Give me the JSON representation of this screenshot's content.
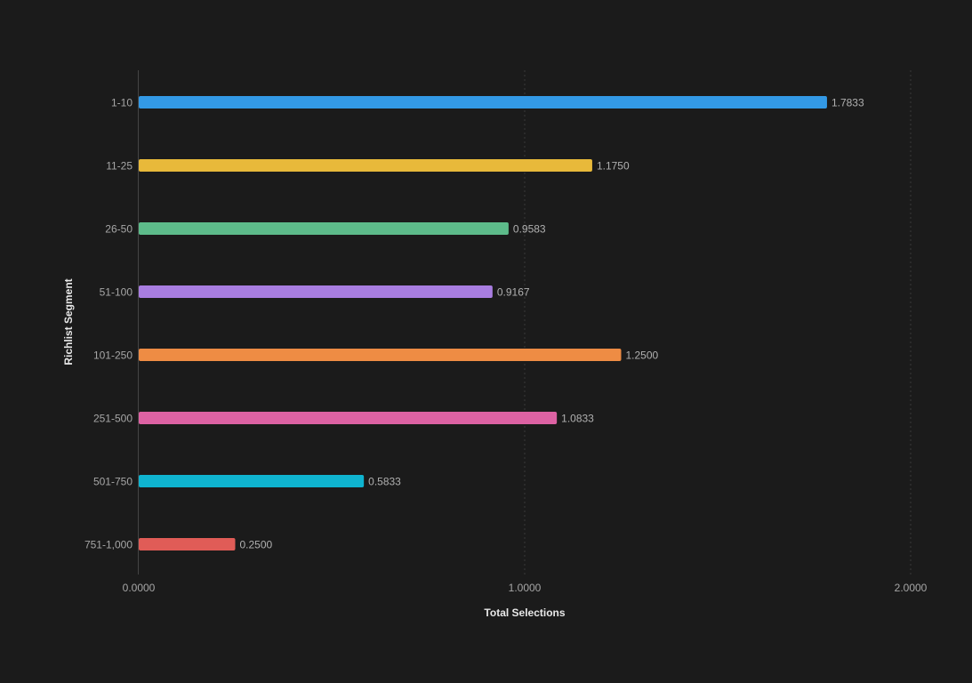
{
  "chart_data": {
    "type": "bar",
    "orientation": "horizontal",
    "title": "",
    "xlabel": "Total Selections",
    "ylabel": "Richlist Segment",
    "xlim": [
      0,
      2
    ],
    "x_ticks": [
      {
        "value": 0,
        "label": "0.0000"
      },
      {
        "value": 1,
        "label": "1.0000"
      },
      {
        "value": 2,
        "label": "2.0000"
      }
    ],
    "grid": "vertical-dotted",
    "categories": [
      "1-10",
      "11-25",
      "26-50",
      "51-100",
      "101-250",
      "251-500",
      "501-750",
      "751-1,000"
    ],
    "values": [
      1.7833,
      1.175,
      0.9583,
      0.9167,
      1.25,
      1.0833,
      0.5833,
      0.25
    ],
    "value_labels": [
      "1.7833",
      "1.1750",
      "0.9583",
      "0.9167",
      "1.2500",
      "1.0833",
      "0.5833",
      "0.2500"
    ],
    "colors": [
      "#3399e6",
      "#e8b93a",
      "#5dbb8a",
      "#a87de0",
      "#ee8c44",
      "#dd62a3",
      "#0fb4d0",
      "#e05c57"
    ]
  },
  "theme": {
    "background": "#1b1b1b",
    "grid_color": "#3a3a3a",
    "axis_color": "#444444"
  }
}
